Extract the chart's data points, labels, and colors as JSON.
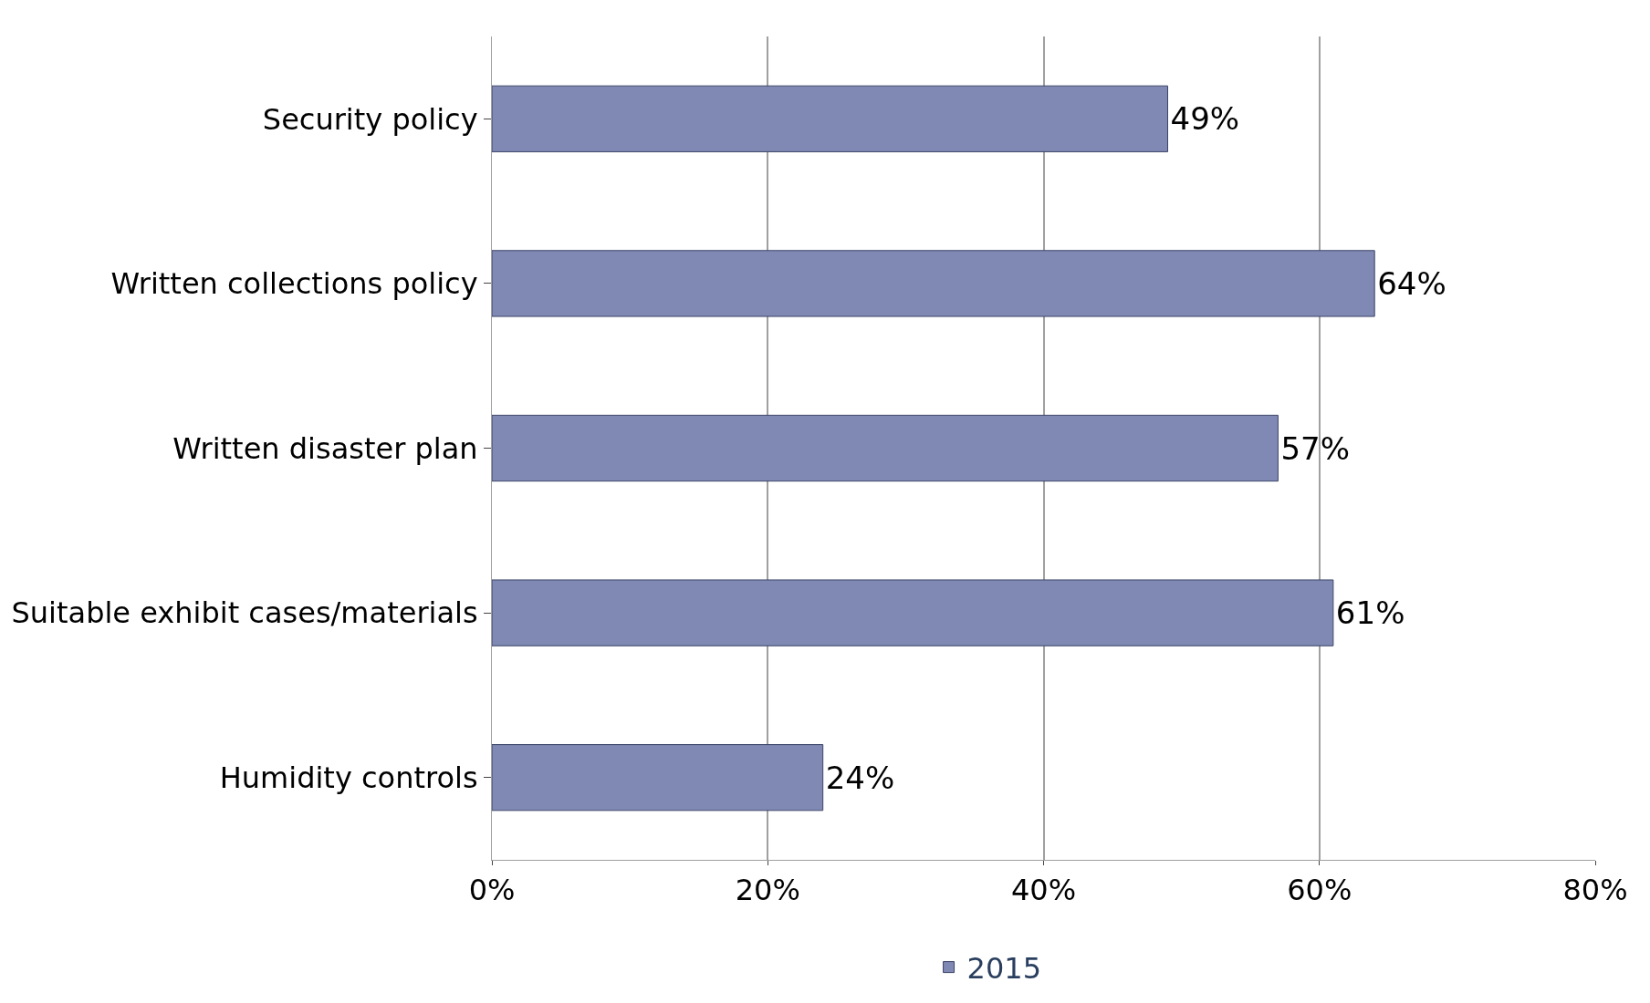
{
  "chart_data": {
    "type": "bar",
    "orientation": "horizontal",
    "categories": [
      "Security policy",
      "Written collections policy",
      "Written disaster plan",
      "Suitable exhibit cases/materials",
      "Humidity controls"
    ],
    "series": [
      {
        "name": "2015",
        "color": "#7f89b3",
        "values": [
          49,
          64,
          57,
          61,
          24
        ]
      }
    ],
    "value_labels": [
      "49%",
      "64%",
      "57%",
      "61%",
      "24%"
    ],
    "xlim": [
      0,
      80
    ],
    "xticks": [
      {
        "value": 0,
        "label": "0%"
      },
      {
        "value": 20,
        "label": "20%"
      },
      {
        "value": 40,
        "label": "40%"
      },
      {
        "value": 60,
        "label": "60%"
      },
      {
        "value": 80,
        "label": "80%"
      }
    ],
    "grid": "x",
    "legend": "bottom"
  }
}
